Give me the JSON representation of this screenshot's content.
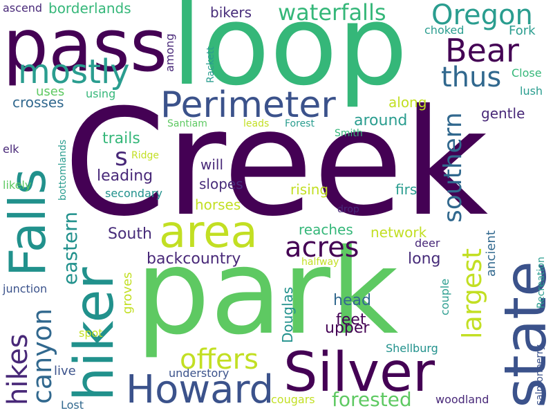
{
  "words": [
    {
      "text": "Creek",
      "color": "#440154"
    },
    {
      "text": "park",
      "color": "#5ec962"
    },
    {
      "text": "loop",
      "color": "#35b779"
    },
    {
      "text": "pass",
      "color": "#440154"
    },
    {
      "text": "hiker",
      "color": "#21918c"
    },
    {
      "text": "state",
      "color": "#3b528b"
    },
    {
      "text": "Falls",
      "color": "#21918c"
    },
    {
      "text": "Silver",
      "color": "#440154"
    },
    {
      "text": "area",
      "color": "#c2df23"
    },
    {
      "text": "Perimeter",
      "color": "#3b528b"
    },
    {
      "text": "Howard",
      "color": "#3b528b"
    },
    {
      "text": "mostly",
      "color": "#2a9d8f"
    },
    {
      "text": "Bear",
      "color": "#440154"
    },
    {
      "text": "Oregon",
      "color": "#2a9d8f"
    },
    {
      "text": "waterfalls",
      "color": "#35b779"
    },
    {
      "text": "thus",
      "color": "#31688e"
    },
    {
      "text": "acres",
      "color": "#440154"
    },
    {
      "text": "canyon",
      "color": "#31688e"
    },
    {
      "text": "hikes",
      "color": "#482878"
    },
    {
      "text": "offers",
      "color": "#c2df23"
    },
    {
      "text": "largest",
      "color": "#c2df23"
    },
    {
      "text": "southern",
      "color": "#31688e"
    },
    {
      "text": "eastern",
      "color": "#21918c"
    },
    {
      "text": "forested",
      "color": "#5ec962"
    },
    {
      "text": "borderlands",
      "color": "#35b779"
    },
    {
      "text": "bikers",
      "color": "#472c7a"
    },
    {
      "text": "Fork",
      "color": "#2a9d8f"
    },
    {
      "text": "choked",
      "color": "#2a9d8f"
    },
    {
      "text": "Close",
      "color": "#35b779"
    },
    {
      "text": "lush",
      "color": "#2a9d8f"
    },
    {
      "text": "gentle",
      "color": "#482878"
    },
    {
      "text": "along",
      "color": "#c2df23"
    },
    {
      "text": "around",
      "color": "#2a9d8f"
    },
    {
      "text": "crosses",
      "color": "#31688e"
    },
    {
      "text": "uses",
      "color": "#5ec962"
    },
    {
      "text": "using",
      "color": "#35b779"
    },
    {
      "text": "ascend",
      "color": "#482878"
    },
    {
      "text": "among",
      "color": "#482878"
    },
    {
      "text": "Rackett",
      "color": "#2a9d8f"
    },
    {
      "text": "Santiam",
      "color": "#5ec962"
    },
    {
      "text": "leads",
      "color": "#c2df23"
    },
    {
      "text": "Forest",
      "color": "#2a9d8f"
    },
    {
      "text": "Smith",
      "color": "#35b779"
    },
    {
      "text": "trails",
      "color": "#35b779"
    },
    {
      "text": "s",
      "color": "#482878"
    },
    {
      "text": "Ridge",
      "color": "#c2df23"
    },
    {
      "text": "will",
      "color": "#482878"
    },
    {
      "text": "leading",
      "color": "#482878"
    },
    {
      "text": "slopes",
      "color": "#472c7a"
    },
    {
      "text": "secondary",
      "color": "#21918c"
    },
    {
      "text": "rising",
      "color": "#c2df23"
    },
    {
      "text": "firs",
      "color": "#2a9d8f"
    },
    {
      "text": "horses",
      "color": "#c2df23"
    },
    {
      "text": "drop",
      "color": "#482878"
    },
    {
      "text": "elk",
      "color": "#482878"
    },
    {
      "text": "likely",
      "color": "#5ec962"
    },
    {
      "text": "bottomlands",
      "color": "#2a9d8f"
    },
    {
      "text": "South",
      "color": "#472c7a"
    },
    {
      "text": "reaches",
      "color": "#35b779"
    },
    {
      "text": "network",
      "color": "#c2df23"
    },
    {
      "text": "ancient",
      "color": "#31688e"
    },
    {
      "text": "deer",
      "color": "#482878"
    },
    {
      "text": "backcountry",
      "color": "#482878"
    },
    {
      "text": "long",
      "color": "#472c7a"
    },
    {
      "text": "halfway",
      "color": "#c2df23"
    },
    {
      "text": "junction",
      "color": "#3b528b"
    },
    {
      "text": "groves",
      "color": "#c2df23"
    },
    {
      "text": "Douglas",
      "color": "#21918c"
    },
    {
      "text": "head",
      "color": "#31688e"
    },
    {
      "text": "feet",
      "color": "#440154"
    },
    {
      "text": "upper",
      "color": "#440154"
    },
    {
      "text": "couple",
      "color": "#2a9d8f"
    },
    {
      "text": "salmonberry",
      "color": "#3b528b"
    },
    {
      "text": "Recreation",
      "color": "#2a9d8f"
    },
    {
      "text": "spot",
      "color": "#c2df23"
    },
    {
      "text": "live",
      "color": "#3b528b"
    },
    {
      "text": "understory",
      "color": "#3b528b"
    },
    {
      "text": "Shellburg",
      "color": "#21918c"
    },
    {
      "text": "Lost",
      "color": "#31688e"
    },
    {
      "text": "cougars",
      "color": "#c2df23"
    },
    {
      "text": "woodland",
      "color": "#482878"
    }
  ]
}
